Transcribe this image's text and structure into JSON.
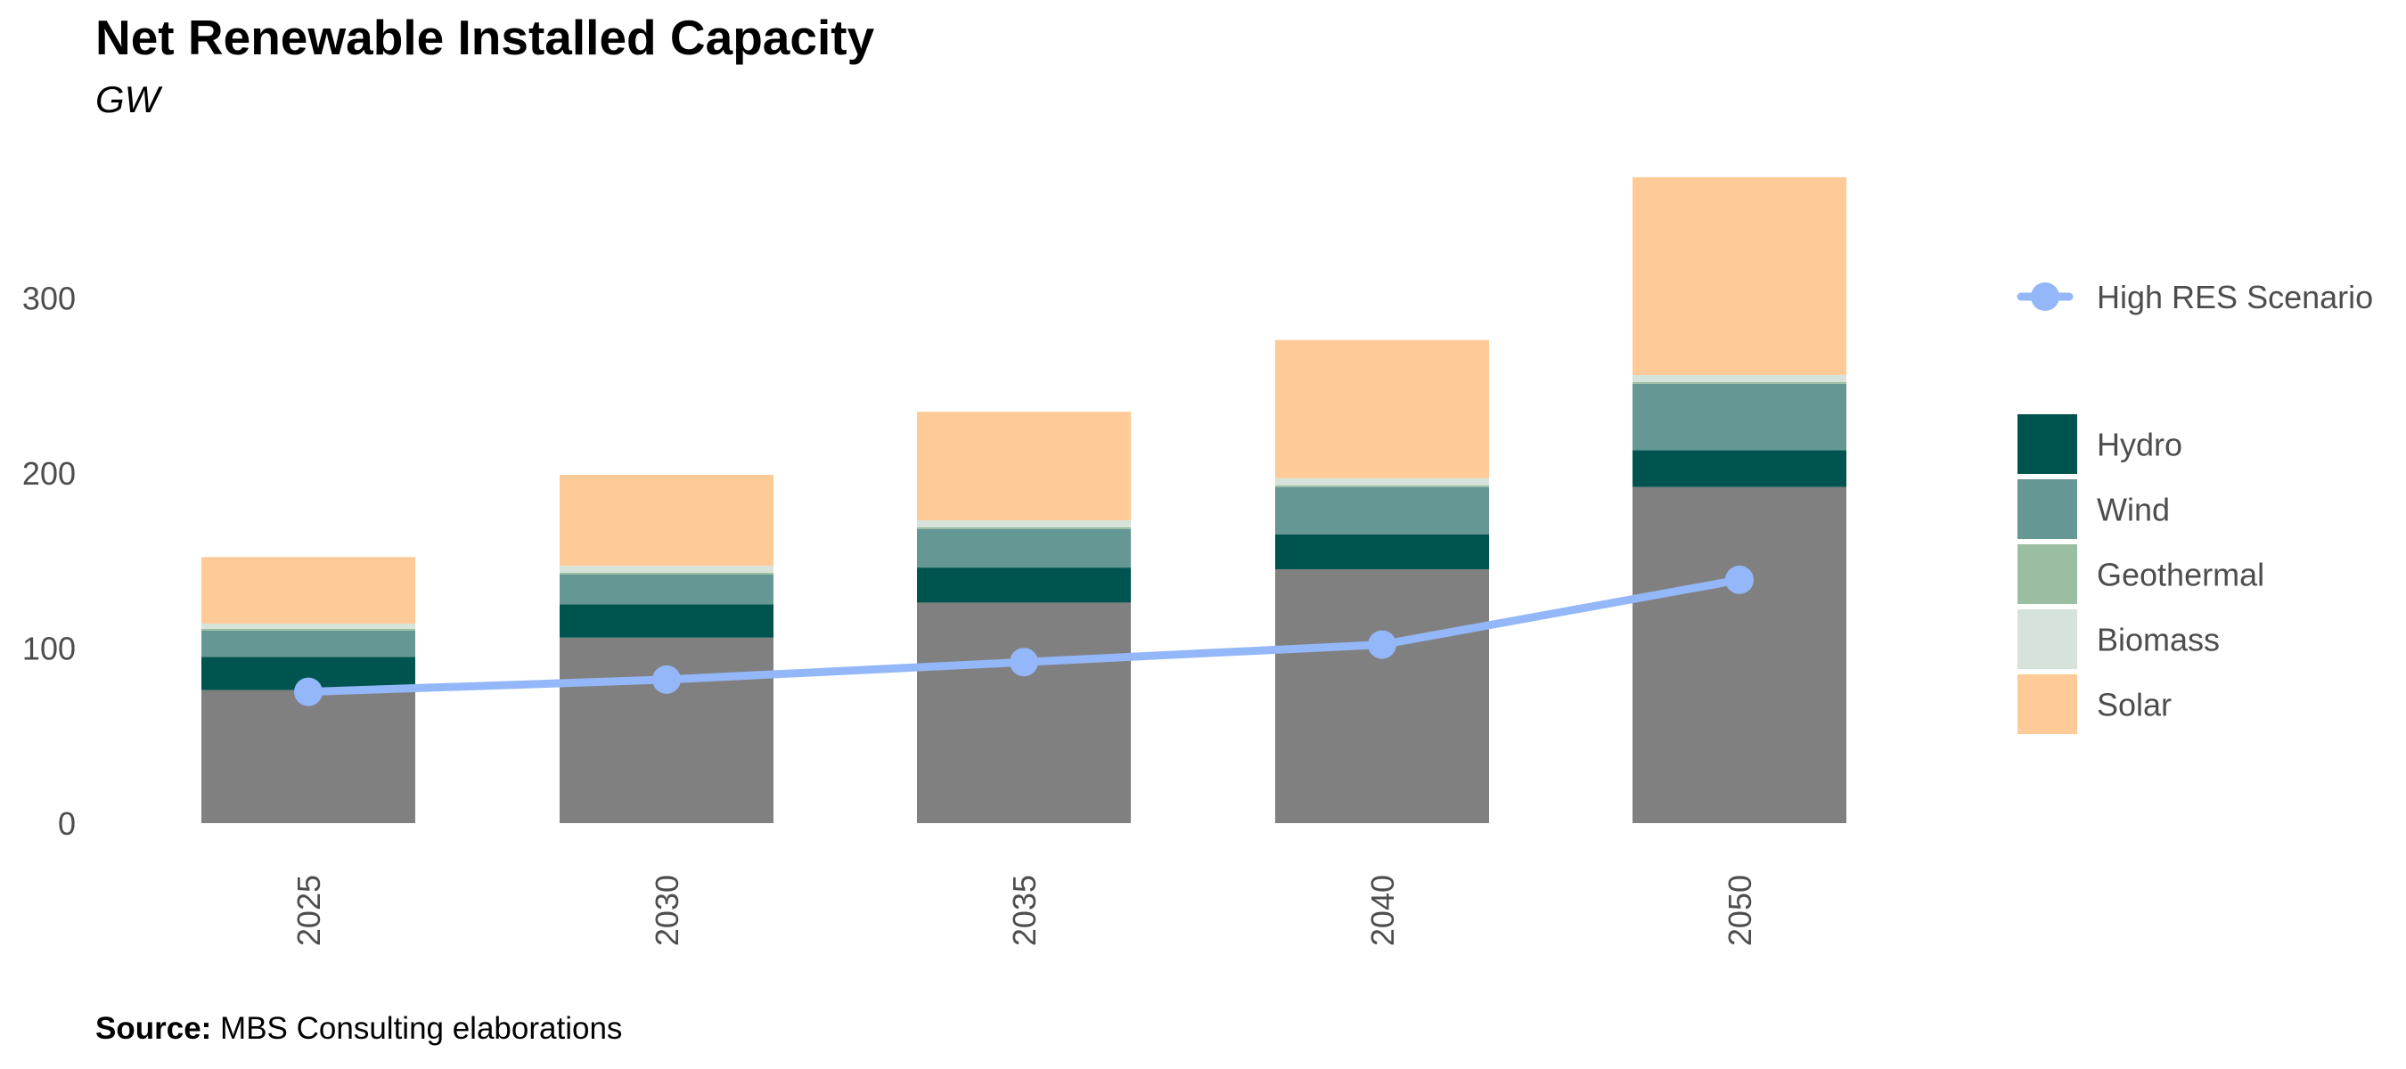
{
  "title": "Net Renewable Installed Capacity",
  "subtitle": "GW",
  "source": {
    "label": "Source:",
    "text": "MBS Consulting elaborations"
  },
  "colors": {
    "base": "#808080",
    "Hydro": "#00544F",
    "Wind": "#659794",
    "Geothermal": "#9BBEA2",
    "Biomass": "#D5E3DA",
    "Solar": "#FECB98",
    "line": "#93B7F8",
    "axis_text": "#4D4D4D"
  },
  "chart_data": {
    "type": "bar",
    "stacked": true,
    "title": "Net Renewable Installed Capacity",
    "subtitle": "GW",
    "xlabel": "",
    "ylabel": "",
    "ylim": [
      0,
      370
    ],
    "yticks": [
      0,
      100,
      200,
      300
    ],
    "grid": false,
    "categories": [
      "2025",
      "2030",
      "2035",
      "2040",
      "2050"
    ],
    "base_values": [
      76,
      106,
      126,
      145,
      192
    ],
    "series": [
      {
        "name": "Hydro",
        "values": [
          19,
          19,
          20,
          20,
          21
        ]
      },
      {
        "name": "Wind",
        "values": [
          15,
          17,
          22,
          27,
          38
        ]
      },
      {
        "name": "Geothermal",
        "values": [
          1,
          1,
          1,
          1,
          1
        ]
      },
      {
        "name": "Biomass",
        "values": [
          3,
          4,
          4,
          4,
          4
        ]
      },
      {
        "name": "Solar",
        "values": [
          38,
          52,
          62,
          79,
          113
        ]
      }
    ],
    "line": {
      "name": "High RES Scenario",
      "values": [
        75,
        82,
        92,
        102,
        139
      ]
    },
    "legend_position": "right"
  }
}
